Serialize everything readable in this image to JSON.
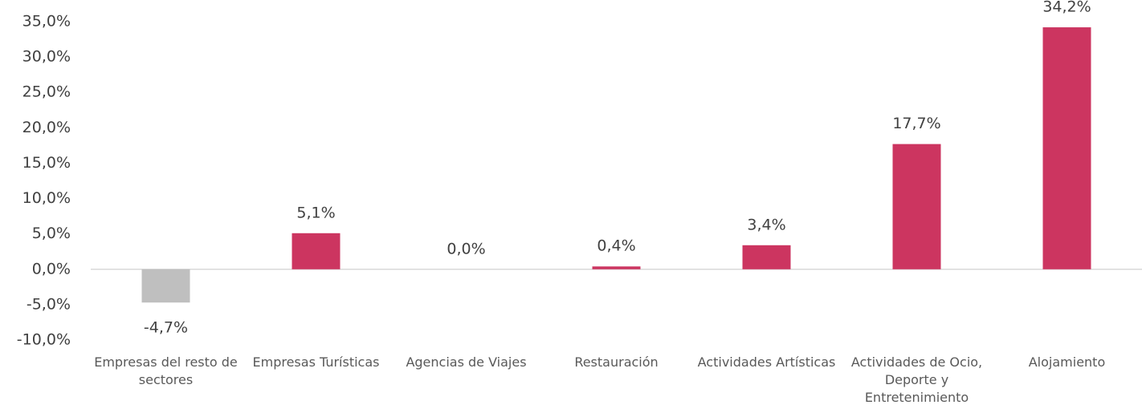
{
  "chart_data": {
    "type": "bar",
    "categories": [
      "Empresas del resto de sectores",
      "Empresas Turísticas",
      "Agencias de Viajes",
      "Restauración",
      "Actividades Artísticas",
      "Actividades de Ocio, Deporte y Entretenimiento",
      "Alojamiento"
    ],
    "values": [
      -4.7,
      5.1,
      0.0,
      0.4,
      3.4,
      17.7,
      34.2
    ],
    "value_labels": [
      "-4,7%",
      "5,1%",
      "0,0%",
      "0,4%",
      "3,4%",
      "17,7%",
      "34,2%"
    ],
    "colors": [
      "#bfbfbf",
      "#cc3560",
      "#cc3560",
      "#cc3560",
      "#cc3560",
      "#cc3560",
      "#cc3560"
    ],
    "ylim": [
      -10,
      35
    ],
    "yticks": [
      {
        "value": -10,
        "label": "-10,0%"
      },
      {
        "value": -5,
        "label": "-5,0%"
      },
      {
        "value": 0,
        "label": "0,0%"
      },
      {
        "value": 5,
        "label": "5,0%"
      },
      {
        "value": 10,
        "label": "10,0%"
      },
      {
        "value": 15,
        "label": "15,0%"
      },
      {
        "value": 20,
        "label": "20,0%"
      },
      {
        "value": 25,
        "label": "25,0%"
      },
      {
        "value": 30,
        "label": "30,0%"
      },
      {
        "value": 35,
        "label": "35,0%"
      }
    ],
    "grid": false
  }
}
